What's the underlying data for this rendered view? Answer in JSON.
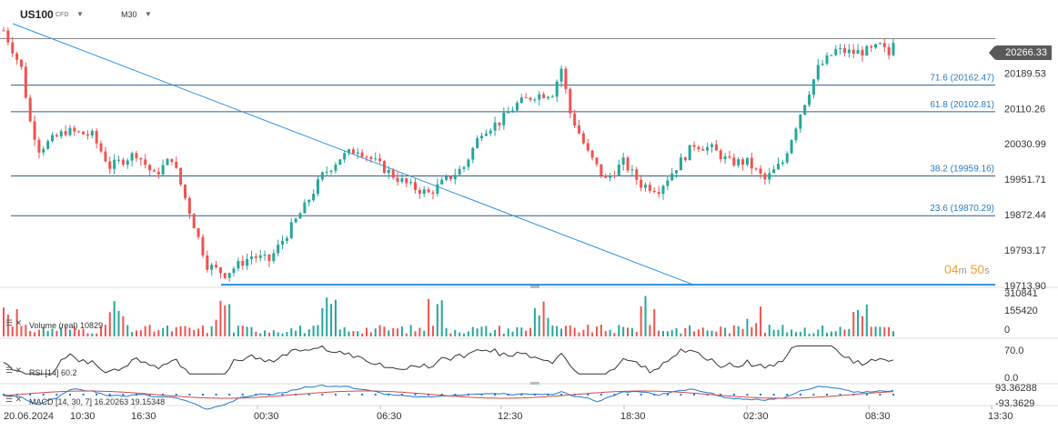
{
  "header": {
    "symbol": "US100",
    "instrument_type": "CFD",
    "timeframe": "M30",
    "dropdown_icon": "chevron-down-icon"
  },
  "countdown": {
    "minutes": "04",
    "minutes_unit": "m",
    "seconds": "50",
    "seconds_unit": "s"
  },
  "current_price_label": "20266.33",
  "indicators": {
    "volume_label": "Volume (real)",
    "volume_value": "10829",
    "rsi_label": "RSI [14]",
    "rsi_value": "60.2",
    "macd_label": "MACD [14, 30, 7]",
    "macd_value1": "16.20263",
    "macd_value2": "19.15348"
  },
  "colors": {
    "up": "#26a69a",
    "down": "#ef5350",
    "fib_line": "#2f5d8a",
    "trendline": "#2b8fe0",
    "support": "#2b8fe0",
    "countdown": "#f2a22b",
    "rsi_line": "#333333",
    "macd_line": "#1f77d0",
    "signal_line": "#d04848"
  },
  "chart_data": {
    "type": "candlestick",
    "price_axis": {
      "ticks": [
        "20189.53",
        "20110.26",
        "20030.99",
        "19951.71",
        "19872.44",
        "19793.17",
        "19713.90"
      ],
      "current": "20266.33",
      "range": [
        19710,
        20300
      ]
    },
    "time_axis": {
      "labels": [
        "20.06.2024",
        "10:30",
        "16:30",
        "00:30",
        "06:30",
        "12:30",
        "18:30",
        "02:30",
        "08:30",
        "13:30"
      ]
    },
    "fibonacci_levels": [
      {
        "label": "71.6 (20162.47)",
        "value": 20162.47
      },
      {
        "label": "61.8 (20102.81)",
        "value": 20102.81
      },
      {
        "label": "38.2 (19959.16)",
        "value": 19959.16
      },
      {
        "label": "23.6 (19870.29)",
        "value": 19870.29
      }
    ],
    "horizontal_lines": [
      {
        "name": "support",
        "value": 19713.9
      },
      {
        "name": "current",
        "value": 20266.33
      }
    ],
    "trendline": {
      "from": {
        "bar": 0,
        "value": 20300
      },
      "to": {
        "bar": 125,
        "value": 19713.9
      }
    },
    "close_path": [
      [
        0,
        20285
      ],
      [
        4,
        20200
      ],
      [
        6,
        20080
      ],
      [
        8,
        20020
      ],
      [
        14,
        20060
      ],
      [
        20,
        20050
      ],
      [
        24,
        19980
      ],
      [
        30,
        20010
      ],
      [
        34,
        19960
      ],
      [
        38,
        20000
      ],
      [
        42,
        19880
      ],
      [
        46,
        19760
      ],
      [
        50,
        19740
      ],
      [
        56,
        19780
      ],
      [
        60,
        19770
      ],
      [
        64,
        19830
      ],
      [
        68,
        19890
      ],
      [
        72,
        19960
      ],
      [
        76,
        20000
      ],
      [
        80,
        20020
      ],
      [
        84,
        19990
      ],
      [
        88,
        19960
      ],
      [
        92,
        19935
      ],
      [
        96,
        19920
      ],
      [
        100,
        19950
      ],
      [
        104,
        19980
      ],
      [
        108,
        20060
      ],
      [
        112,
        20080
      ],
      [
        116,
        20120
      ],
      [
        120,
        20140
      ],
      [
        124,
        20145
      ],
      [
        126,
        20200
      ],
      [
        128,
        20100
      ],
      [
        132,
        20010
      ],
      [
        136,
        19950
      ],
      [
        140,
        19990
      ],
      [
        144,
        19940
      ],
      [
        148,
        19930
      ],
      [
        152,
        19980
      ],
      [
        156,
        20030
      ],
      [
        160,
        20020
      ],
      [
        164,
        19990
      ],
      [
        168,
        19990
      ],
      [
        172,
        19950
      ],
      [
        176,
        19990
      ],
      [
        180,
        20100
      ],
      [
        184,
        20200
      ],
      [
        188,
        20240
      ],
      [
        192,
        20235
      ],
      [
        196,
        20240
      ],
      [
        198,
        20250
      ],
      [
        200,
        20230
      ],
      [
        201,
        20266
      ]
    ],
    "volume_axis": {
      "ticks": [
        "310841",
        "155420",
        "0"
      ],
      "max": 310841
    },
    "rsi_axis": {
      "ticks": [
        "70.0",
        "0.0"
      ],
      "range": [
        0,
        100
      ]
    },
    "macd_axis": {
      "ticks": [
        "93.36288",
        "-93.3629"
      ],
      "range": [
        -93.3629,
        93.36288
      ]
    }
  }
}
